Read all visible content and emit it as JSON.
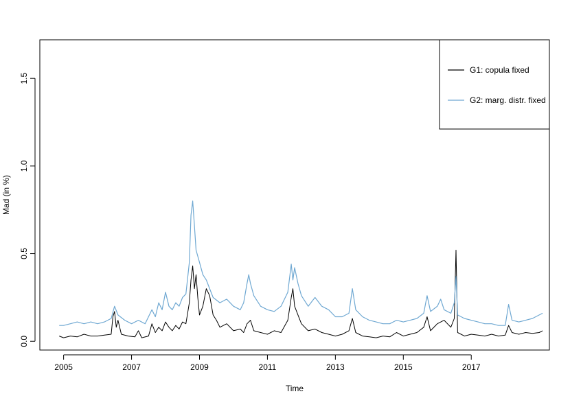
{
  "chart_data": {
    "type": "line",
    "title": "",
    "xlabel": "Time",
    "ylabel": "Mad (in %)",
    "xlim": [
      2004.3,
      2019.3
    ],
    "ylim": [
      -0.05,
      1.72
    ],
    "x_ticks": [
      2005,
      2007,
      2009,
      2011,
      2013,
      2015,
      2017
    ],
    "x_tick_labels": [
      "2005",
      "2007",
      "2009",
      "2011",
      "2013",
      "2015",
      "2017"
    ],
    "y_ticks": [
      0.0,
      0.5,
      1.0,
      1.5
    ],
    "y_tick_labels": [
      "0.0",
      "0.5",
      "1.0",
      "1.5"
    ],
    "grid": false,
    "legend_position": "top-right",
    "series": [
      {
        "name": "G1: copula fixed",
        "color": "#000000",
        "points": [
          [
            2004.87,
            0.03
          ],
          [
            2005.0,
            0.02
          ],
          [
            2005.2,
            0.03
          ],
          [
            2005.4,
            0.025
          ],
          [
            2005.6,
            0.04
          ],
          [
            2005.8,
            0.03
          ],
          [
            2006.0,
            0.03
          ],
          [
            2006.2,
            0.035
          ],
          [
            2006.4,
            0.04
          ],
          [
            2006.45,
            0.14
          ],
          [
            2006.5,
            0.17
          ],
          [
            2006.55,
            0.08
          ],
          [
            2006.6,
            0.12
          ],
          [
            2006.7,
            0.04
          ],
          [
            2006.9,
            0.03
          ],
          [
            2007.1,
            0.025
          ],
          [
            2007.2,
            0.06
          ],
          [
            2007.3,
            0.02
          ],
          [
            2007.5,
            0.03
          ],
          [
            2007.6,
            0.1
          ],
          [
            2007.7,
            0.05
          ],
          [
            2007.8,
            0.08
          ],
          [
            2007.9,
            0.06
          ],
          [
            2008.0,
            0.11
          ],
          [
            2008.1,
            0.08
          ],
          [
            2008.2,
            0.06
          ],
          [
            2008.3,
            0.09
          ],
          [
            2008.4,
            0.07
          ],
          [
            2008.5,
            0.11
          ],
          [
            2008.6,
            0.1
          ],
          [
            2008.7,
            0.22
          ],
          [
            2008.75,
            0.35
          ],
          [
            2008.8,
            0.43
          ],
          [
            2008.85,
            0.3
          ],
          [
            2008.9,
            0.38
          ],
          [
            2008.95,
            0.25
          ],
          [
            2009.0,
            0.15
          ],
          [
            2009.1,
            0.2
          ],
          [
            2009.2,
            0.3
          ],
          [
            2009.3,
            0.26
          ],
          [
            2009.4,
            0.15
          ],
          [
            2009.5,
            0.12
          ],
          [
            2009.6,
            0.08
          ],
          [
            2009.8,
            0.1
          ],
          [
            2010.0,
            0.06
          ],
          [
            2010.2,
            0.07
          ],
          [
            2010.3,
            0.05
          ],
          [
            2010.4,
            0.1
          ],
          [
            2010.5,
            0.12
          ],
          [
            2010.6,
            0.06
          ],
          [
            2010.8,
            0.05
          ],
          [
            2011.0,
            0.04
          ],
          [
            2011.2,
            0.06
          ],
          [
            2011.4,
            0.05
          ],
          [
            2011.6,
            0.12
          ],
          [
            2011.7,
            0.25
          ],
          [
            2011.75,
            0.3
          ],
          [
            2011.8,
            0.2
          ],
          [
            2011.9,
            0.15
          ],
          [
            2012.0,
            0.1
          ],
          [
            2012.2,
            0.06
          ],
          [
            2012.4,
            0.07
          ],
          [
            2012.6,
            0.05
          ],
          [
            2012.8,
            0.04
          ],
          [
            2013.0,
            0.03
          ],
          [
            2013.2,
            0.04
          ],
          [
            2013.4,
            0.06
          ],
          [
            2013.5,
            0.13
          ],
          [
            2013.6,
            0.05
          ],
          [
            2013.8,
            0.03
          ],
          [
            2014.0,
            0.025
          ],
          [
            2014.2,
            0.02
          ],
          [
            2014.4,
            0.03
          ],
          [
            2014.6,
            0.025
          ],
          [
            2014.8,
            0.05
          ],
          [
            2015.0,
            0.03
          ],
          [
            2015.2,
            0.04
          ],
          [
            2015.4,
            0.05
          ],
          [
            2015.6,
            0.08
          ],
          [
            2015.7,
            0.14
          ],
          [
            2015.8,
            0.06
          ],
          [
            2016.0,
            0.1
          ],
          [
            2016.2,
            0.12
          ],
          [
            2016.4,
            0.08
          ],
          [
            2016.5,
            0.13
          ],
          [
            2016.55,
            0.52
          ],
          [
            2016.6,
            0.05
          ],
          [
            2016.8,
            0.03
          ],
          [
            2017.0,
            0.04
          ],
          [
            2017.2,
            0.035
          ],
          [
            2017.4,
            0.03
          ],
          [
            2017.6,
            0.04
          ],
          [
            2017.8,
            0.03
          ],
          [
            2018.0,
            0.035
          ],
          [
            2018.1,
            0.09
          ],
          [
            2018.2,
            0.05
          ],
          [
            2018.4,
            0.04
          ],
          [
            2018.6,
            0.05
          ],
          [
            2018.8,
            0.045
          ],
          [
            2019.0,
            0.05
          ],
          [
            2019.1,
            0.06
          ]
        ]
      },
      {
        "name": "G2: marg. distr. fixed",
        "color": "#6fa8d2",
        "points": [
          [
            2004.87,
            0.09
          ],
          [
            2005.0,
            0.09
          ],
          [
            2005.2,
            0.1
          ],
          [
            2005.4,
            0.11
          ],
          [
            2005.6,
            0.1
          ],
          [
            2005.8,
            0.11
          ],
          [
            2006.0,
            0.1
          ],
          [
            2006.2,
            0.11
          ],
          [
            2006.4,
            0.13
          ],
          [
            2006.5,
            0.2
          ],
          [
            2006.6,
            0.15
          ],
          [
            2006.8,
            0.12
          ],
          [
            2007.0,
            0.1
          ],
          [
            2007.2,
            0.12
          ],
          [
            2007.4,
            0.1
          ],
          [
            2007.6,
            0.18
          ],
          [
            2007.7,
            0.14
          ],
          [
            2007.8,
            0.22
          ],
          [
            2007.9,
            0.18
          ],
          [
            2008.0,
            0.28
          ],
          [
            2008.1,
            0.2
          ],
          [
            2008.2,
            0.18
          ],
          [
            2008.3,
            0.22
          ],
          [
            2008.4,
            0.2
          ],
          [
            2008.5,
            0.25
          ],
          [
            2008.6,
            0.27
          ],
          [
            2008.7,
            0.45
          ],
          [
            2008.75,
            0.72
          ],
          [
            2008.8,
            0.8
          ],
          [
            2008.85,
            0.66
          ],
          [
            2008.9,
            0.52
          ],
          [
            2009.0,
            0.45
          ],
          [
            2009.1,
            0.38
          ],
          [
            2009.2,
            0.35
          ],
          [
            2009.3,
            0.3
          ],
          [
            2009.4,
            0.25
          ],
          [
            2009.6,
            0.22
          ],
          [
            2009.8,
            0.24
          ],
          [
            2010.0,
            0.2
          ],
          [
            2010.2,
            0.18
          ],
          [
            2010.3,
            0.22
          ],
          [
            2010.4,
            0.33
          ],
          [
            2010.45,
            0.38
          ],
          [
            2010.5,
            0.33
          ],
          [
            2010.6,
            0.26
          ],
          [
            2010.8,
            0.2
          ],
          [
            2011.0,
            0.18
          ],
          [
            2011.2,
            0.17
          ],
          [
            2011.4,
            0.2
          ],
          [
            2011.6,
            0.28
          ],
          [
            2011.7,
            0.44
          ],
          [
            2011.75,
            0.35
          ],
          [
            2011.8,
            0.42
          ],
          [
            2011.9,
            0.33
          ],
          [
            2012.0,
            0.26
          ],
          [
            2012.2,
            0.2
          ],
          [
            2012.4,
            0.25
          ],
          [
            2012.6,
            0.2
          ],
          [
            2012.8,
            0.18
          ],
          [
            2013.0,
            0.14
          ],
          [
            2013.2,
            0.14
          ],
          [
            2013.4,
            0.16
          ],
          [
            2013.5,
            0.3
          ],
          [
            2013.6,
            0.18
          ],
          [
            2013.8,
            0.14
          ],
          [
            2014.0,
            0.12
          ],
          [
            2014.2,
            0.11
          ],
          [
            2014.4,
            0.1
          ],
          [
            2014.6,
            0.1
          ],
          [
            2014.8,
            0.12
          ],
          [
            2015.0,
            0.11
          ],
          [
            2015.2,
            0.12
          ],
          [
            2015.4,
            0.13
          ],
          [
            2015.6,
            0.16
          ],
          [
            2015.7,
            0.26
          ],
          [
            2015.8,
            0.17
          ],
          [
            2016.0,
            0.2
          ],
          [
            2016.1,
            0.24
          ],
          [
            2016.2,
            0.18
          ],
          [
            2016.4,
            0.16
          ],
          [
            2016.5,
            0.22
          ],
          [
            2016.55,
            0.37
          ],
          [
            2016.6,
            0.15
          ],
          [
            2016.8,
            0.13
          ],
          [
            2017.0,
            0.12
          ],
          [
            2017.2,
            0.11
          ],
          [
            2017.4,
            0.1
          ],
          [
            2017.6,
            0.1
          ],
          [
            2017.8,
            0.09
          ],
          [
            2018.0,
            0.09
          ],
          [
            2018.1,
            0.21
          ],
          [
            2018.2,
            0.12
          ],
          [
            2018.4,
            0.11
          ],
          [
            2018.6,
            0.12
          ],
          [
            2018.8,
            0.13
          ],
          [
            2019.0,
            0.15
          ],
          [
            2019.1,
            0.16
          ]
        ]
      }
    ]
  }
}
